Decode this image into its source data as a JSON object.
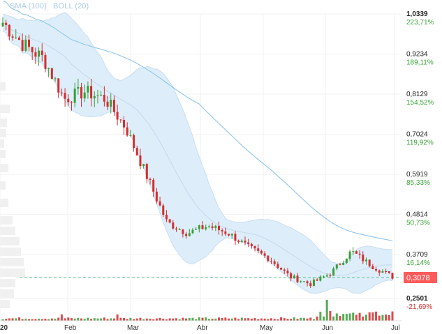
{
  "indicators": {
    "sma_label": "SMA (100)",
    "boll_label": "BOLL (20)"
  },
  "price_axis": {
    "ticks": [
      {
        "price": 1.0339,
        "label": "1,0339",
        "pct": "223,71%"
      },
      {
        "price": 0.9234,
        "label": "0,9234",
        "pct": "189,11%"
      },
      {
        "price": 0.8129,
        "label": "0,8129",
        "pct": "154,52%"
      },
      {
        "price": 0.7024,
        "label": "0,7024",
        "pct": "119,92%"
      },
      {
        "price": 0.5919,
        "label": "0,5919",
        "pct": "85,33%"
      },
      {
        "price": 0.4814,
        "label": "0,4814",
        "pct": "50,73%"
      },
      {
        "price": 0.3709,
        "label": "0,3709",
        "pct": "16,14%"
      },
      {
        "price": 0.2501,
        "label": "0,2501",
        "pct": "-21,69%"
      }
    ],
    "current_price": {
      "price": 0.3078,
      "label": "0,3078"
    }
  },
  "time_axis": {
    "labels": [
      "20",
      "Feb",
      "Mar",
      "Abr",
      "May",
      "Jun",
      "Jul"
    ]
  },
  "colors": {
    "up": "#3a9e3a",
    "down": "#d42e2e",
    "band_fill": "#ddeefa",
    "band_line": "#c8def2",
    "sma_line": "#8ec4ec",
    "current_price_bg": "#ff5a5a",
    "pct_positive": "#3ba53b",
    "pct_negative": "#d42e2e"
  },
  "chart_data": {
    "type": "candlestick",
    "x_range": [
      "Jan",
      "Jul"
    ],
    "y_range": [
      0.2501,
      1.0339
    ],
    "current_price": 0.3078,
    "price_trend": [
      {
        "t": "Jan start",
        "close": 1.01
      },
      {
        "t": "mid Jan",
        "close": 0.95
      },
      {
        "t": "Feb start",
        "close": 0.91
      },
      {
        "t": "early Feb",
        "close": 0.8
      },
      {
        "t": "mid Feb",
        "close": 0.82
      },
      {
        "t": "late Feb",
        "close": 0.8
      },
      {
        "t": "Mar start",
        "close": 0.72
      },
      {
        "t": "early Mar",
        "close": 0.59
      },
      {
        "t": "mid Mar",
        "close": 0.46
      },
      {
        "t": "late Mar",
        "close": 0.43
      },
      {
        "t": "Abr start",
        "close": 0.45
      },
      {
        "t": "mid Abr",
        "close": 0.43
      },
      {
        "t": "late Abr",
        "close": 0.39
      },
      {
        "t": "May start",
        "close": 0.36
      },
      {
        "t": "mid May",
        "close": 0.31
      },
      {
        "t": "late May",
        "close": 0.29
      },
      {
        "t": "Jun start",
        "close": 0.32
      },
      {
        "t": "early Jun",
        "close": 0.38
      },
      {
        "t": "mid Jun",
        "close": 0.34
      },
      {
        "t": "late Jun",
        "close": 0.31
      }
    ]
  }
}
